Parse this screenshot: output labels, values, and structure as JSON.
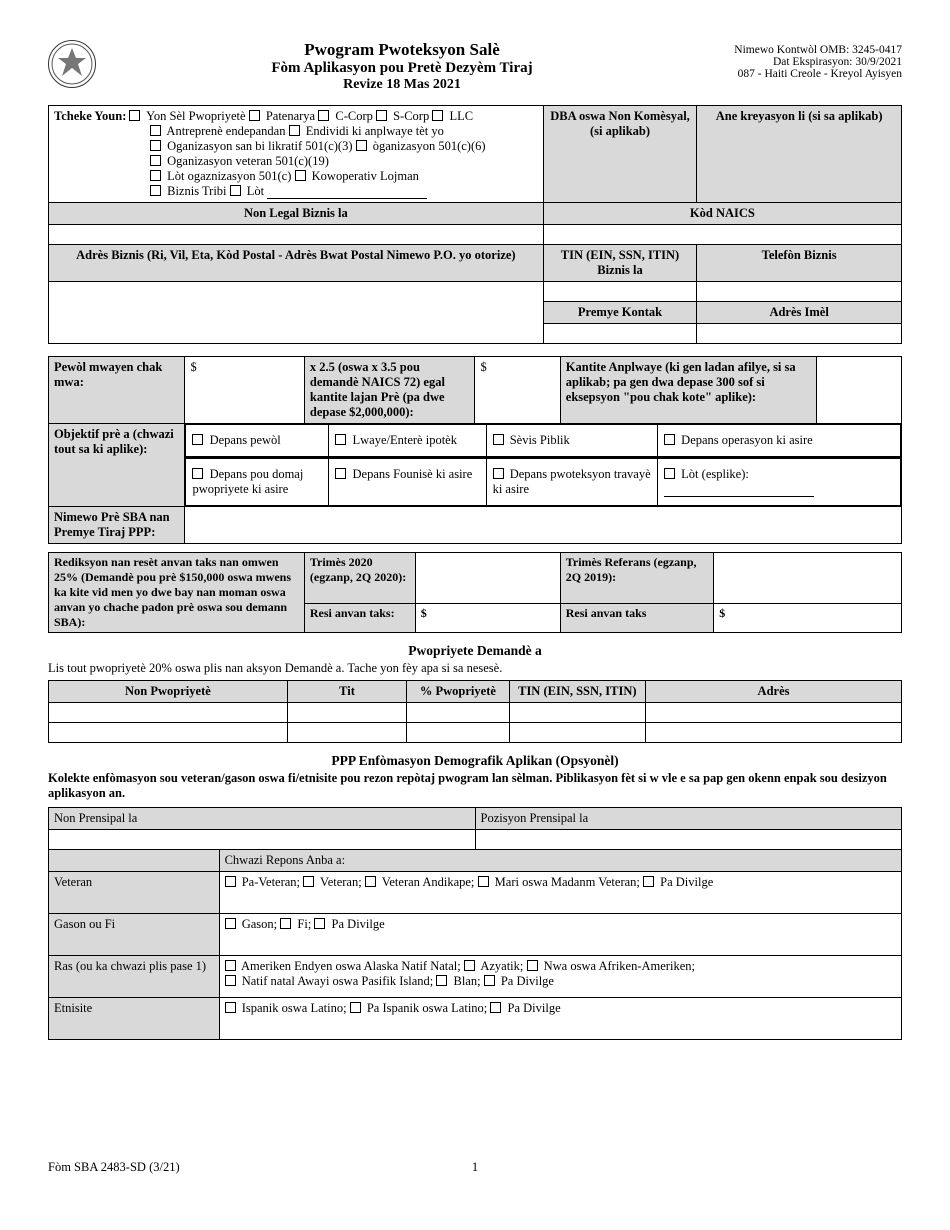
{
  "header": {
    "title1": "Pwogram Pwoteksyon Salè",
    "title2": "Fòm Aplikasyon pou Pretè Dezyèm Tiraj",
    "title3": "Revize 18 Mas 2021",
    "omb": "Nimewo Kontwòl OMB: 3245-0417",
    "expiry": "Dat Ekspirasyon: 30/9/2021",
    "lang": "087 - Haiti Creole - Kreyol Ayisyen"
  },
  "block1": {
    "check_label": "Tcheke Youn:",
    "opts_row1": [
      "Yon Sèl Pwopriyetè",
      "Patenarya",
      "C-Corp",
      "S-Corp",
      "LLC"
    ],
    "opts_row2": [
      "Antreprenè endepandan",
      "Endividi ki anplwaye tèt yo"
    ],
    "opts_row3": [
      "Oganizasyon san bi likratif 501(c)(3)",
      "òganizasyon 501(c)(6)"
    ],
    "opts_row4": [
      "Oganizasyon veteran 501(c)(19)"
    ],
    "opts_row5": [
      "Lòt ogaznizasyon 501(c)",
      "Kowoperativ Lojman"
    ],
    "opts_row6": [
      "Biznis Tribi",
      "Lòt"
    ],
    "dba_header": "DBA oswa Non Komèsyal, (si aplikab)",
    "year_header": "Ane kreyasyon li (si sa aplikab)",
    "legal_name_header": "Non Legal Biznis la",
    "naics_header": "Kòd NAICS",
    "address_header": "Adrès Biznis (Ri, Vil, Eta, Kòd Postal - Adrès Bwat Postal Nimewo P.O. yo otorize)",
    "tin_header": "TIN (EIN, SSN, ITIN) Biznis la",
    "phone_header": "Telefòn Biznis",
    "contact_header": "Premye Kontak",
    "email_header": "Adrès Imèl"
  },
  "block2": {
    "payroll_label": "Pewòl mwayen chak mwa:",
    "multiply_label": "x 2.5 (oswa x 3.5 pou demandè NAICS 72) egal kantite lajan Prè (pa dwe depase $2,000,000):",
    "employees_label": "Kantite Anplwaye (ki gen ladan afilye, si sa aplikab; pa gen dwa depase 300 sof si eksepsyon \"pou chak kote\" aplike):",
    "dollar": "$",
    "purpose_label": "Objektif prè a (chwazi tout sa ki aplike):",
    "purposes_row1": [
      "Depans pewòl",
      "Lwaye/Enterè ipotèk",
      "Sèvis Piblik",
      "Depans operasyon ki asire"
    ],
    "purposes_row2": [
      "Depans pou domaj pwopriyete ki asire",
      "Depans Founisè ki asire",
      "Depans pwoteksyon travayè ki asire",
      "Lòt (esplike):"
    ],
    "sba_loan_label": "Nimewo Prè SBA nan Premye Tiraj PPP:"
  },
  "block3": {
    "reduction_label": "Rediksyon nan resèt anvan taks nan omwen 25% (Demandè pou prè $150,000 oswa mwens ka kite vid men yo dwe bay nan moman oswa anvan yo chache padon prè oswa sou demann SBA):",
    "q2020_label": "Trimès 2020 (egzanp, 2Q 2020):",
    "qref_label": "Trimès Referans (egzanp, 2Q 2019):",
    "receipts1_label": "Resi anvan taks:",
    "receipts2_label": "Resi anvan taks",
    "dollar": "$"
  },
  "ownership": {
    "title": "Pwopriyete Demandè a",
    "subtitle": "Lis tout pwopriyetè 20% oswa plis nan aksyon Demandè a. Tache yon fèy apa si sa nesesè.",
    "cols": [
      "Non Pwopriyetè",
      "Tit",
      "% Pwopriyetè",
      "TIN (EIN, SSN, ITIN)",
      "Adrès"
    ]
  },
  "demo": {
    "title": "PPP Enfòmasyon Demografik Aplikan (Opsyonèl)",
    "intro": "Kolekte enfòmasyon sou veteran/gason oswa fi/etnisite pou rezon repòtaj pwogram lan sèlman. Piblikasyon fèt si w vle e sa pap gen okenn enpak sou desizyon aplikasyon an.",
    "name_hdr": "Non Prensipal la",
    "pos_hdr": "Pozisyon Prensipal la",
    "choose_hdr": "Chwazi Repons Anba a:",
    "rows": [
      {
        "label": "Veteran",
        "opts": [
          "Pa-Veteran;",
          "Veteran;",
          "Veteran Andikape;",
          "Mari oswa Madanm Veteran;",
          "Pa Divilge"
        ]
      },
      {
        "label": "Gason ou Fi",
        "opts": [
          "Gason;",
          "Fi;",
          "Pa Divilge"
        ]
      },
      {
        "label": "Ras (ou ka chwazi plis pase 1)",
        "opts_multi": [
          [
            "Ameriken Endyen oswa Alaska Natif Natal;",
            "Azyatik;",
            "Nwa oswa Afriken-Ameriken;"
          ],
          [
            "Natif natal Awayi oswa Pasifik Island;",
            "Blan;",
            "Pa Divilge"
          ]
        ]
      },
      {
        "label": "Etnisite",
        "opts": [
          "Ispanik oswa Latino;",
          "Pa Ispanik oswa Latino;",
          "Pa Divilge"
        ]
      }
    ]
  },
  "footer": {
    "form_no": "Fòm SBA 2483-SD (3/21)",
    "page": "1"
  }
}
